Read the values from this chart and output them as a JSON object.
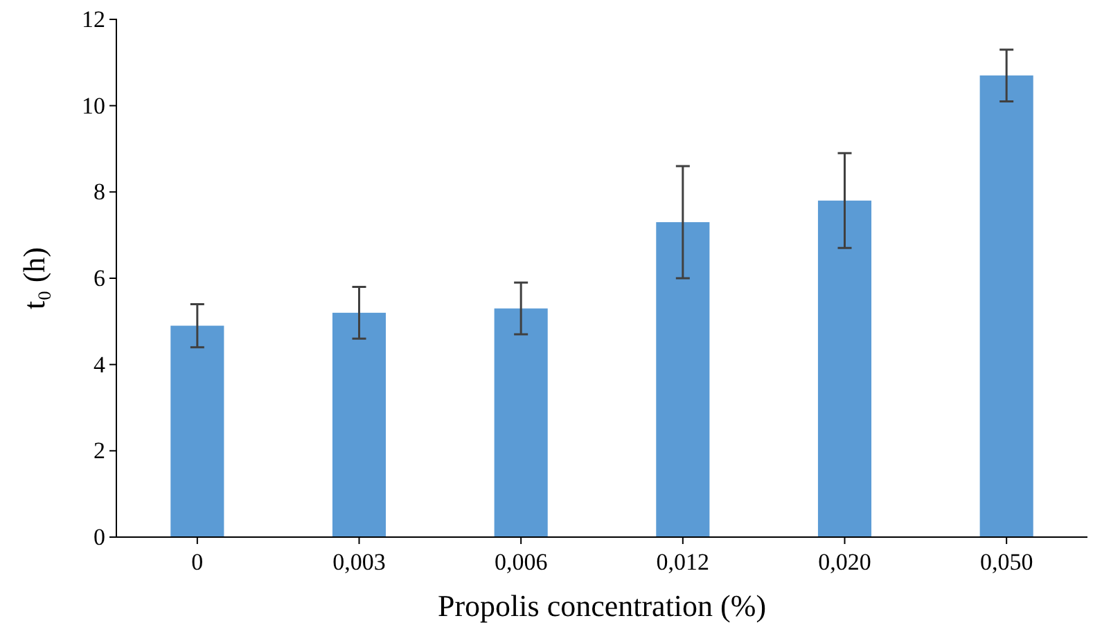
{
  "chart_data": {
    "type": "bar",
    "xlabel": "Propolis concentration (%)",
    "ylabel": "t₀ (h)",
    "categories": [
      "0",
      "0,003",
      "0,006",
      "0,012",
      "0,020",
      "0,050"
    ],
    "values": [
      4.9,
      5.2,
      5.3,
      7.3,
      7.8,
      10.7
    ],
    "errors": [
      0.5,
      0.6,
      0.6,
      [
        6.0,
        8.6
      ],
      [
        6.7,
        8.9
      ],
      0.6
    ],
    "color": "#5b9bd5",
    "ylim": [
      0,
      12
    ],
    "yticks": [
      0,
      2,
      4,
      6,
      8,
      10,
      12
    ],
    "grid": false
  }
}
